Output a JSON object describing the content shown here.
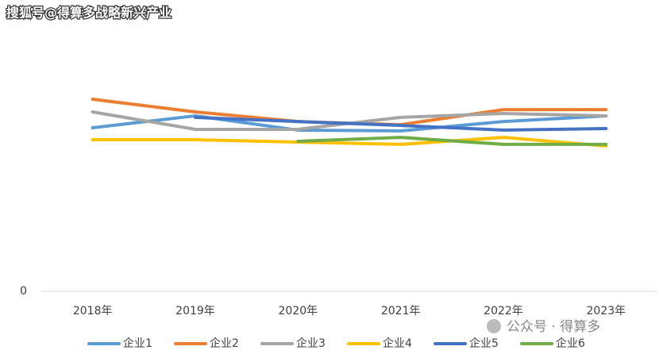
{
  "chart_data": {
    "type": "line",
    "title": "搜狐号@得算多战略新兴产业",
    "watermark": "公众号 · 得算多",
    "categories": [
      "2018年",
      "2019年",
      "2020年",
      "2021年",
      "2022年",
      "2023年"
    ],
    "series": [
      {
        "name": "企业1",
        "color": "#5b9bd5",
        "values": [
          63,
          67.6,
          62.1,
          61.8,
          65.4,
          67.6
        ]
      },
      {
        "name": "企业2",
        "color": "#ed7d31",
        "values": [
          74,
          69.1,
          65.4,
          64.2,
          70,
          70
        ]
      },
      {
        "name": "企业3",
        "color": "#a5a5a5",
        "values": [
          69.1,
          62.4,
          62.4,
          67,
          68.5,
          67.6
        ]
      },
      {
        "name": "企业4",
        "color": "#ffc000",
        "values": [
          58.4,
          58.4,
          57.5,
          56.6,
          59.3,
          56
        ]
      },
      {
        "name": "企业5",
        "color": "#4472c4",
        "values": [
          null,
          67,
          65.4,
          63.9,
          62.1,
          62.7
        ]
      },
      {
        "name": "企业6",
        "color": "#70ad47",
        "values": [
          null,
          null,
          57.8,
          59.3,
          56.6,
          56.6
        ]
      }
    ],
    "ylim": [
      0,
      100
    ],
    "yticks": [
      0
    ],
    "grid": false,
    "legend": "bottom"
  }
}
